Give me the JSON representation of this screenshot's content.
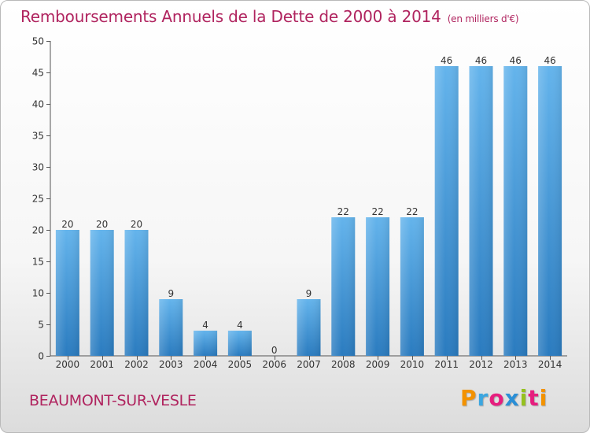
{
  "title": {
    "main": "Remboursements Annuels de la Dette de 2000 à 2014",
    "unit": "(en milliers d'€)"
  },
  "commune": "BEAUMONT-SUR-VESLE",
  "logo": {
    "letters": [
      "P",
      "r",
      "o",
      "x",
      "i",
      "t",
      "i"
    ],
    "colors": [
      "#f39200",
      "#3ba6e0",
      "#e61e7e",
      "#2b8fd6",
      "#95c11f",
      "#e61e7e",
      "#f39200"
    ]
  },
  "colors": {
    "bar_light": "#64b4ec",
    "bar_dark": "#2a7bbf",
    "title": "#b0245f"
  },
  "chart_data": {
    "type": "bar",
    "title": "Remboursements Annuels de la Dette de 2000 à 2014",
    "xlabel": "",
    "ylabel": "",
    "categories": [
      "2000",
      "2001",
      "2002",
      "2003",
      "2004",
      "2005",
      "2006",
      "2007",
      "2008",
      "2009",
      "2010",
      "2011",
      "2012",
      "2013",
      "2014"
    ],
    "values": [
      20,
      20,
      20,
      9,
      4,
      4,
      0,
      9,
      22,
      22,
      22,
      46,
      46,
      46,
      46
    ],
    "ylim": [
      0,
      50
    ],
    "yticks": [
      0,
      5,
      10,
      15,
      20,
      25,
      30,
      35,
      40,
      45,
      50
    ],
    "grid": false,
    "data_labels": true
  }
}
